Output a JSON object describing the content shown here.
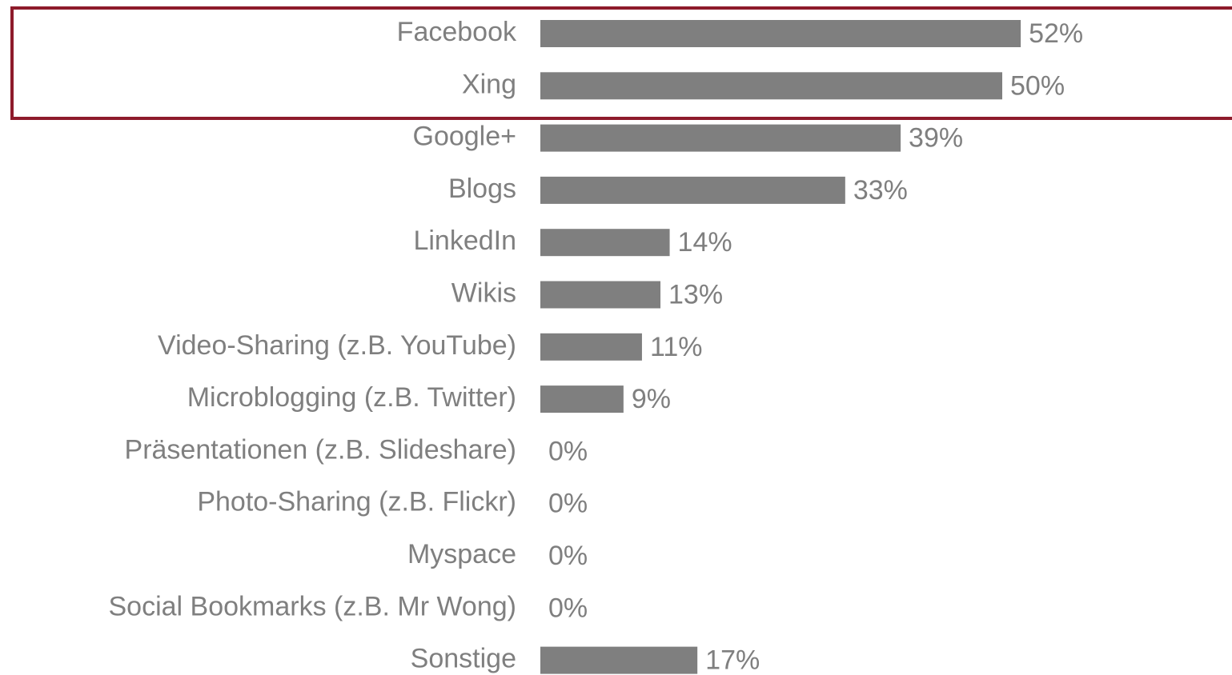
{
  "chart_data": {
    "type": "bar",
    "orientation": "horizontal",
    "categories": [
      "Facebook",
      "Xing",
      "Google+",
      "Blogs",
      "LinkedIn",
      "Wikis",
      "Video-Sharing (z.B. YouTube)",
      "Microblogging (z.B. Twitter)",
      "Präsentationen (z.B. Slideshare)",
      "Photo-Sharing (z.B. Flickr)",
      "Myspace",
      "Social Bookmarks (z.B. Mr Wong)",
      "Sonstige"
    ],
    "values": [
      52,
      50,
      39,
      33,
      14,
      13,
      11,
      9,
      0,
      0,
      0,
      0,
      17
    ],
    "value_labels": [
      "52%",
      "50%",
      "39%",
      "33%",
      "14%",
      "13%",
      "11%",
      "9%",
      "0%",
      "0%",
      "0%",
      "0%",
      "17%"
    ],
    "color": "#7f7f7f"
  }
}
